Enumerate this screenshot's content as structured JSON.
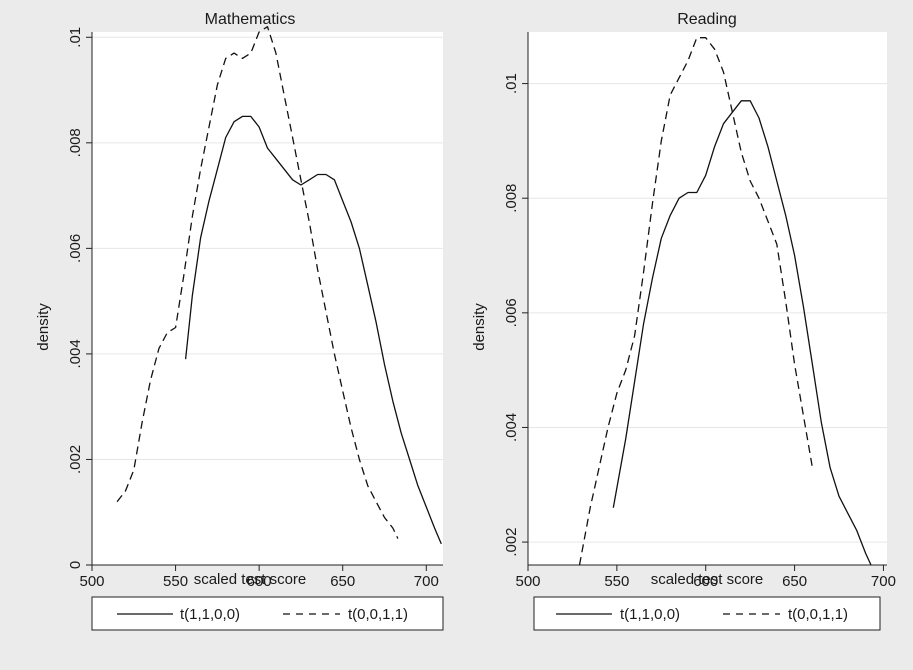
{
  "chart_data": [
    {
      "type": "line",
      "title": "Mathematics",
      "xlabel": "scaled test score",
      "ylabel": "density",
      "xlim": [
        500,
        710
      ],
      "ylim": [
        0,
        0.0101
      ],
      "x_ticks": [
        500,
        550,
        600,
        650,
        700
      ],
      "x_tick_labels": [
        "500",
        "550",
        "600",
        "650",
        "700"
      ],
      "y_ticks": [
        0,
        0.002,
        0.004,
        0.006,
        0.008,
        0.01
      ],
      "y_tick_labels": [
        "0",
        ".002",
        ".004",
        ".006",
        ".008",
        ".01"
      ],
      "grid": true,
      "legend_placement": "bottom",
      "series": [
        {
          "name": "t(1,1,0,0)",
          "style": "solid",
          "x": [
            556,
            560,
            565,
            570,
            575,
            580,
            585,
            590,
            595,
            600,
            605,
            610,
            615,
            620,
            625,
            630,
            635,
            640,
            645,
            650,
            655,
            660,
            665,
            670,
            675,
            680,
            685,
            690,
            695,
            700,
            705,
            709
          ],
          "y": [
            0.0039,
            0.0051,
            0.0062,
            0.0069,
            0.0075,
            0.0081,
            0.0084,
            0.0085,
            0.0085,
            0.0083,
            0.0079,
            0.0077,
            0.0075,
            0.0073,
            0.0072,
            0.0073,
            0.0074,
            0.0074,
            0.0073,
            0.0069,
            0.0065,
            0.006,
            0.0053,
            0.0046,
            0.0038,
            0.0031,
            0.0025,
            0.002,
            0.0015,
            0.0011,
            0.0007,
            0.0004
          ]
        },
        {
          "name": "t(0,0,1,1)",
          "style": "dashed",
          "x": [
            515,
            520,
            525,
            530,
            535,
            540,
            545,
            550,
            555,
            560,
            565,
            570,
            575,
            580,
            585,
            590,
            595,
            600,
            605,
            610,
            615,
            620,
            625,
            630,
            635,
            640,
            645,
            650,
            655,
            660,
            665,
            670,
            675,
            680,
            683
          ],
          "y": [
            0.0012,
            0.0014,
            0.0018,
            0.0027,
            0.0035,
            0.0041,
            0.0044,
            0.0045,
            0.0055,
            0.0066,
            0.0075,
            0.0083,
            0.0091,
            0.0096,
            0.0097,
            0.0096,
            0.0097,
            0.0101,
            0.0102,
            0.0097,
            0.0089,
            0.0081,
            0.0073,
            0.0065,
            0.0056,
            0.0048,
            0.004,
            0.0033,
            0.0026,
            0.002,
            0.0015,
            0.0012,
            0.0009,
            0.0007,
            0.0005
          ]
        }
      ]
    },
    {
      "type": "line",
      "title": "Reading",
      "xlabel": "scaled test score",
      "ylabel": "density",
      "xlim": [
        500,
        702
      ],
      "ylim": [
        0.0016,
        0.0109
      ],
      "x_ticks": [
        500,
        550,
        600,
        650,
        700
      ],
      "x_tick_labels": [
        "500",
        "550",
        "600",
        "650",
        "700"
      ],
      "y_ticks": [
        0.002,
        0.004,
        0.006,
        0.008,
        0.01
      ],
      "y_tick_labels": [
        ".002",
        ".004",
        ".006",
        ".008",
        ".01"
      ],
      "grid": true,
      "legend_placement": "bottom",
      "series": [
        {
          "name": "t(1,1,0,0)",
          "style": "solid",
          "x": [
            548,
            555,
            560,
            565,
            570,
            575,
            580,
            585,
            590,
            595,
            600,
            605,
            610,
            615,
            620,
            625,
            630,
            635,
            640,
            645,
            650,
            655,
            660,
            665,
            670,
            675,
            680,
            685,
            690,
            693
          ],
          "y": [
            0.0026,
            0.0038,
            0.0048,
            0.0058,
            0.0066,
            0.0073,
            0.0077,
            0.008,
            0.0081,
            0.0081,
            0.0084,
            0.0089,
            0.0093,
            0.0095,
            0.0097,
            0.0097,
            0.0094,
            0.0089,
            0.0083,
            0.0077,
            0.007,
            0.0061,
            0.0051,
            0.0041,
            0.0033,
            0.0028,
            0.0025,
            0.0022,
            0.0018,
            0.0016
          ]
        },
        {
          "name": "t(0,0,1,1)",
          "style": "dashed",
          "x": [
            529,
            535,
            540,
            545,
            550,
            555,
            560,
            565,
            570,
            575,
            580,
            585,
            590,
            595,
            600,
            605,
            610,
            615,
            620,
            625,
            630,
            635,
            640,
            645,
            650,
            655,
            660
          ],
          "y": [
            0.0016,
            0.0026,
            0.0033,
            0.004,
            0.0046,
            0.005,
            0.0056,
            0.0067,
            0.0079,
            0.009,
            0.0098,
            0.0101,
            0.0104,
            0.0108,
            0.0108,
            0.0106,
            0.0102,
            0.0095,
            0.0088,
            0.0083,
            0.008,
            0.0076,
            0.0072,
            0.0062,
            0.0051,
            0.0042,
            0.0033
          ]
        }
      ]
    }
  ]
}
